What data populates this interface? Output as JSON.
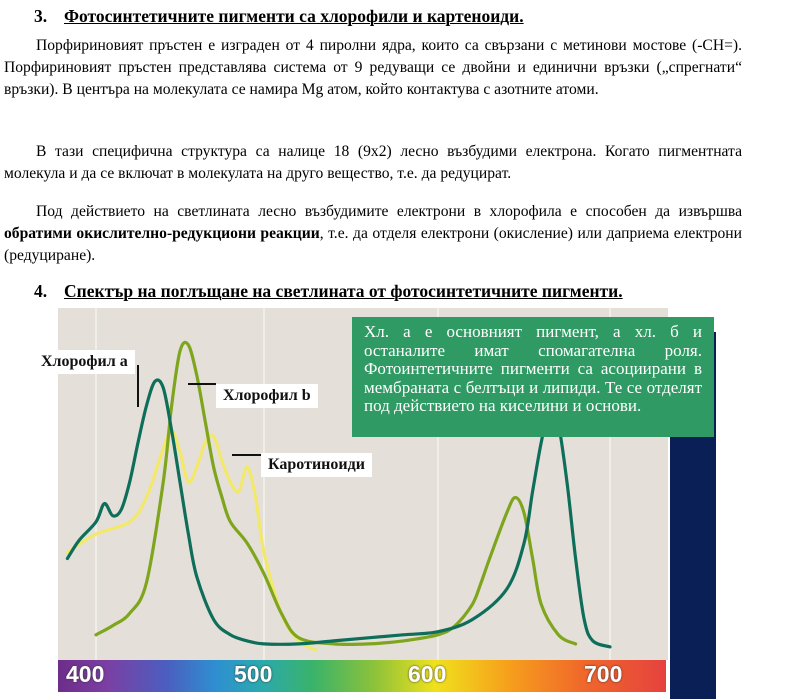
{
  "section3": {
    "number": "3.",
    "title": "Фотосинтетичните пигменти са хлорофили и картеноиди."
  },
  "paragraphs": {
    "p1": "Порфириновият пръстен е изграден от 4 пиролни ядра, които са свързани с метинови мостове (-CH=). Порфириновият пръстен представлява система от 9 редуващи се двойни и единични връзки („спрегнати“ връзки). В центъра на молекулата се намира Mg атом, който контактува с азотните атоми.",
    "p2": "В тази специфична структура са налице 18 (9x2) лесно възбудими електрона. Когато пигментната молекула и да се включат в молекулата на друго вещество, т.е. да редуцират.",
    "p3_start": "Под действието на светлината лесно възбудимите електрони в хлорофила е способен да извършва ",
    "p3_bold": "обратими окислително-редукциони реакции",
    "p3_end": ", т.е. да отделя електрони (окисление) или даприема електрони (редуциране)."
  },
  "section4": {
    "number": "4.",
    "title": "Спектър на поглъщане на светлината от фотосинтетичните пигменти."
  },
  "figure": {
    "labels": {
      "chl_a": "Хлорофил а",
      "chl_b": "Хлорофил b",
      "carotenoids": "Каротиноиди"
    },
    "note": "Хл. а е основният пигмент, а хл. б и останалите имат спомагателна роля. Фотоинтетичните пигменти са асоциирани в мембраната с белтъци и липиди. Те се отделят под действието на киселини и основи.",
    "colors": {
      "chl_a": "#0f6e5a",
      "chl_b": "#7fa51e",
      "carotenoids": "#f2e86a",
      "note_bg": "#2f9a63",
      "plot_bg": "#e4e0d9",
      "navy": "#0a1f56"
    }
  },
  "chart_data": {
    "type": "line",
    "x_axis_ticks": [
      "400",
      "500",
      "600",
      "700"
    ],
    "xlim": [
      380,
      712
    ],
    "series": [
      {
        "name": "Хлорофил а",
        "x": [
          383,
          390,
          400,
          405,
          410,
          415,
          420,
          425,
          430,
          435,
          440,
          445,
          450,
          455,
          460,
          470,
          480,
          490,
          500,
          520,
          540,
          560,
          580,
          600,
          620,
          640,
          650,
          655,
          660,
          665,
          670,
          675,
          680,
          685,
          690,
          700
        ],
        "y": [
          0.3,
          0.36,
          0.42,
          0.48,
          0.44,
          0.46,
          0.55,
          0.68,
          0.8,
          0.88,
          0.86,
          0.72,
          0.55,
          0.38,
          0.24,
          0.1,
          0.05,
          0.03,
          0.02,
          0.02,
          0.03,
          0.04,
          0.05,
          0.06,
          0.1,
          0.2,
          0.35,
          0.52,
          0.68,
          0.8,
          0.74,
          0.55,
          0.3,
          0.1,
          0.03,
          0.01
        ]
      },
      {
        "name": "Хлорофил b",
        "x": [
          400,
          410,
          420,
          430,
          440,
          445,
          450,
          455,
          460,
          465,
          470,
          475,
          480,
          490,
          500,
          510,
          520,
          540,
          560,
          580,
          600,
          610,
          620,
          625,
          630,
          640,
          645,
          650,
          655,
          660,
          670,
          680
        ],
        "y": [
          0.05,
          0.08,
          0.12,
          0.22,
          0.55,
          0.8,
          0.98,
          1.0,
          0.9,
          0.75,
          0.6,
          0.5,
          0.42,
          0.35,
          0.25,
          0.12,
          0.04,
          0.02,
          0.02,
          0.03,
          0.05,
          0.08,
          0.15,
          0.22,
          0.3,
          0.45,
          0.5,
          0.45,
          0.3,
          0.15,
          0.05,
          0.02
        ]
      },
      {
        "name": "Каротиноиди",
        "x": [
          383,
          400,
          420,
          430,
          440,
          445,
          450,
          455,
          460,
          465,
          470,
          475,
          480,
          485,
          490,
          495,
          500,
          510,
          520,
          530
        ],
        "y": [
          0.32,
          0.38,
          0.42,
          0.5,
          0.66,
          0.72,
          0.65,
          0.55,
          0.6,
          0.68,
          0.7,
          0.62,
          0.55,
          0.52,
          0.6,
          0.5,
          0.32,
          0.12,
          0.03,
          0.0
        ]
      }
    ]
  }
}
